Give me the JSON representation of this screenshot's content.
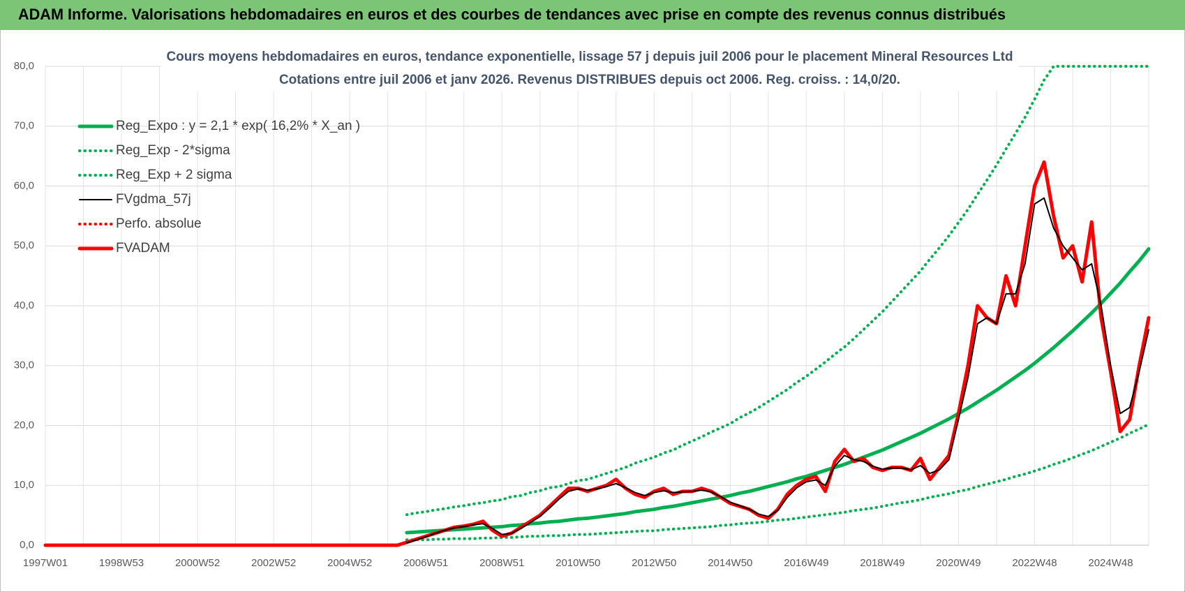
{
  "header": {
    "title": "ADAM Informe. Valorisations hebdomadaires en euros et des courbes de tendances avec prise en compte des revenus connus distribués"
  },
  "chart_data": {
    "type": "line",
    "title": "Cours moyens hebdomadaires en euros, tendance exponentielle, lissage 57 j depuis juil 2006 pour le placement Mineral Resources Ltd",
    "subtitle": "Cotations entre juil 2006 et janv 2026. Revenus DISTRIBUES depuis oct 2006. Reg. croiss. : 14,0/20.",
    "categories": [
      "1997W01",
      null,
      null,
      null,
      null,
      null,
      null,
      null,
      "1998W53",
      null,
      null,
      null,
      null,
      null,
      null,
      null,
      "2000W52",
      null,
      null,
      null,
      null,
      null,
      null,
      null,
      "2002W52",
      null,
      null,
      null,
      null,
      null,
      null,
      null,
      "2004W52",
      null,
      null,
      null,
      null,
      null,
      null,
      null,
      "2006W51",
      null,
      null,
      null,
      null,
      null,
      null,
      null,
      "2008W51",
      null,
      null,
      null,
      null,
      null,
      null,
      null,
      "2010W50",
      null,
      null,
      null,
      null,
      null,
      null,
      null,
      "2012W50",
      null,
      null,
      null,
      null,
      null,
      null,
      null,
      "2014W50",
      null,
      null,
      null,
      null,
      null,
      null,
      null,
      "2016W49",
      null,
      null,
      null,
      null,
      null,
      null,
      null,
      "2018W49",
      null,
      null,
      null,
      null,
      null,
      null,
      null,
      "2020W49",
      null,
      null,
      null,
      null,
      null,
      null,
      null,
      "2022W48",
      null,
      null,
      null,
      null,
      null,
      null,
      null,
      "2024W48",
      null,
      null,
      null,
      null
    ],
    "ylim": [
      0,
      80
    ],
    "yticks": [
      {
        "value": 0,
        "label": "0,0"
      },
      {
        "value": 10,
        "label": "10,0"
      },
      {
        "value": 20,
        "label": "20,0"
      },
      {
        "value": 30,
        "label": "30,0"
      },
      {
        "value": 40,
        "label": "40,0"
      },
      {
        "value": 50,
        "label": "50,0"
      },
      {
        "value": 60,
        "label": "60,0"
      },
      {
        "value": 70,
        "label": "70,0"
      },
      {
        "value": 80,
        "label": "80,0"
      }
    ],
    "grid": true,
    "legend": "upper left",
    "series": [
      {
        "name": "Reg_Expo : y = 2,1 * exp( 16,2% *  X_an )",
        "color": "#00b050",
        "style": "solid",
        "values": [
          null,
          null,
          null,
          null,
          null,
          null,
          null,
          null,
          null,
          null,
          null,
          null,
          null,
          null,
          null,
          null,
          null,
          null,
          null,
          null,
          null,
          null,
          null,
          null,
          null,
          null,
          null,
          null,
          null,
          null,
          null,
          null,
          null,
          null,
          null,
          null,
          null,
          null,
          2.1,
          2.2,
          2.3,
          2.4,
          2.5,
          2.6,
          2.7,
          2.8,
          2.9,
          3.0,
          3.1,
          3.3,
          3.4,
          3.6,
          3.7,
          3.9,
          4.0,
          4.2,
          4.4,
          4.5,
          4.7,
          4.9,
          5.1,
          5.3,
          5.6,
          5.8,
          6.0,
          6.3,
          6.5,
          6.8,
          7.1,
          7.4,
          7.7,
          8.0,
          8.3,
          8.7,
          9.0,
          9.4,
          9.8,
          10.2,
          10.6,
          11.1,
          11.5,
          12.0,
          12.5,
          13.0,
          13.5,
          14.1,
          14.7,
          15.3,
          15.9,
          16.6,
          17.3,
          18.0,
          18.7,
          19.5,
          20.3,
          21.1,
          22.0,
          22.9,
          23.9,
          24.9,
          25.9,
          27.0,
          28.1,
          29.2,
          30.4,
          31.7,
          33.0,
          34.4,
          35.8,
          37.3,
          38.8,
          40.4,
          42.1,
          43.8,
          45.7,
          47.5,
          49.5
        ]
      },
      {
        "name": "Reg_Exp - 2*sigma",
        "color": "#00b050",
        "style": "dotted",
        "values": [
          null,
          null,
          null,
          null,
          null,
          null,
          null,
          null,
          null,
          null,
          null,
          null,
          null,
          null,
          null,
          null,
          null,
          null,
          null,
          null,
          null,
          null,
          null,
          null,
          null,
          null,
          null,
          null,
          null,
          null,
          null,
          null,
          null,
          null,
          null,
          null,
          null,
          null,
          0.9,
          0.9,
          0.9,
          1.0,
          1.0,
          1.1,
          1.1,
          1.1,
          1.2,
          1.2,
          1.3,
          1.3,
          1.4,
          1.5,
          1.5,
          1.6,
          1.6,
          1.7,
          1.8,
          1.8,
          1.9,
          2.0,
          2.1,
          2.2,
          2.3,
          2.4,
          2.4,
          2.6,
          2.7,
          2.8,
          2.9,
          3.0,
          3.1,
          3.3,
          3.4,
          3.6,
          3.7,
          3.8,
          4.0,
          4.2,
          4.3,
          4.5,
          4.7,
          4.9,
          5.1,
          5.3,
          5.5,
          5.8,
          6.0,
          6.2,
          6.5,
          6.8,
          7.1,
          7.3,
          7.6,
          8.0,
          8.3,
          8.6,
          9.0,
          9.3,
          9.8,
          10.2,
          10.6,
          11.0,
          11.5,
          11.9,
          12.4,
          12.9,
          13.5,
          14.0,
          14.6,
          15.2,
          15.8,
          16.5,
          17.2,
          17.9,
          18.7,
          19.4,
          20.2
        ]
      },
      {
        "name": "Reg_Exp + 2 sigma",
        "color": "#00b050",
        "style": "dotted",
        "values": [
          null,
          null,
          null,
          null,
          null,
          null,
          null,
          null,
          null,
          null,
          null,
          null,
          null,
          null,
          null,
          null,
          null,
          null,
          null,
          null,
          null,
          null,
          null,
          null,
          null,
          null,
          null,
          null,
          null,
          null,
          null,
          null,
          null,
          null,
          null,
          null,
          null,
          null,
          5.1,
          5.4,
          5.6,
          5.9,
          6.1,
          6.4,
          6.6,
          6.9,
          7.1,
          7.4,
          7.6,
          8.1,
          8.3,
          8.8,
          9.1,
          9.6,
          9.8,
          10.3,
          10.8,
          11.0,
          11.5,
          12.0,
          12.5,
          13.0,
          13.7,
          14.2,
          14.7,
          15.4,
          15.9,
          16.7,
          17.4,
          18.1,
          18.9,
          19.6,
          20.3,
          21.3,
          22.1,
          23.0,
          24.0,
          25.0,
          26.0,
          27.2,
          28.2,
          29.4,
          30.6,
          31.9,
          33.1,
          34.5,
          36.0,
          37.5,
          39.0,
          40.7,
          42.4,
          44.1,
          45.8,
          47.8,
          49.7,
          51.7,
          53.9,
          56.1,
          58.6,
          61.0,
          63.5,
          66.2,
          68.8,
          71.5,
          74.5,
          77.7,
          80,
          80,
          80,
          80,
          80,
          80,
          80,
          80,
          80,
          80,
          80
        ]
      },
      {
        "name": "FVgdma_57j",
        "color": "#000000",
        "style": "solid",
        "values": [
          null,
          null,
          null,
          null,
          null,
          null,
          null,
          null,
          null,
          null,
          null,
          null,
          null,
          null,
          null,
          null,
          null,
          null,
          null,
          null,
          null,
          null,
          null,
          null,
          null,
          null,
          null,
          null,
          null,
          null,
          null,
          null,
          null,
          null,
          null,
          null,
          null,
          null,
          0.4,
          0.9,
          1.4,
          2.0,
          2.5,
          2.9,
          3.1,
          3.4,
          3.6,
          2.8,
          1.8,
          2.0,
          2.8,
          3.8,
          4.8,
          6.2,
          7.7,
          9.0,
          9.4,
          9.2,
          9.4,
          9.8,
          10.3,
          9.6,
          8.8,
          8.3,
          8.8,
          9.1,
          8.8,
          8.9,
          9.0,
          9.2,
          8.9,
          8.1,
          7.2,
          6.6,
          6.0,
          5.2,
          4.8,
          5.8,
          8.0,
          9.6,
          10.6,
          10.9,
          10.0,
          13.2,
          15.0,
          14.3,
          14.0,
          13.2,
          12.7,
          12.9,
          12.9,
          12.6,
          13.3,
          12.0,
          12.6,
          14.3,
          21,
          28,
          37,
          38,
          37,
          42,
          42,
          47,
          57,
          58,
          53,
          50,
          48,
          46,
          47,
          40,
          30,
          22,
          23,
          29,
          36
        ]
      },
      {
        "name": "Perfo. absolue",
        "color": "#ff0000",
        "style": "dotted",
        "values": [
          0,
          0,
          0,
          0,
          0,
          0,
          0,
          0,
          0,
          0,
          0,
          0,
          0,
          0,
          0,
          0,
          0,
          0,
          0,
          0,
          0,
          0,
          0,
          0,
          0,
          0,
          0,
          0,
          0,
          0,
          0,
          0,
          0,
          0,
          0,
          0,
          0,
          0,
          0.5,
          1.0,
          1.5,
          2.0,
          2.5,
          3.0,
          3.2,
          3.5,
          4.0,
          2.5,
          1.5,
          2.0,
          3.0,
          4.0,
          5.0,
          6.5,
          8.0,
          9.5,
          9.5,
          9.0,
          9.5,
          10.0,
          11.0,
          9.5,
          8.5,
          8.0,
          9.0,
          9.5,
          8.5,
          9.0,
          9.0,
          9.5,
          9.0,
          8.0,
          7.0,
          6.5,
          6.0,
          5.0,
          4.5,
          6.0,
          8.5,
          10.0,
          11.0,
          11.5,
          9.0,
          14.0,
          16.0,
          14.0,
          14.5,
          13.0,
          12.5,
          13.0,
          13.0,
          12.5,
          14.5,
          11.0,
          13.0,
          15.0,
          22,
          30,
          40,
          38,
          37,
          45,
          40,
          50,
          60,
          64,
          55,
          48,
          50,
          44,
          54,
          38,
          29,
          19,
          21,
          30,
          38
        ]
      },
      {
        "name": "FVADAM",
        "color": "#ff0000",
        "style": "solid",
        "values": [
          0,
          0,
          0,
          0,
          0,
          0,
          0,
          0,
          0,
          0,
          0,
          0,
          0,
          0,
          0,
          0,
          0,
          0,
          0,
          0,
          0,
          0,
          0,
          0,
          0,
          0,
          0,
          0,
          0,
          0,
          0,
          0,
          0,
          0,
          0,
          0,
          0,
          0,
          0.5,
          1.0,
          1.5,
          2.0,
          2.5,
          3.0,
          3.2,
          3.5,
          4.0,
          2.5,
          1.5,
          2.0,
          3.0,
          4.0,
          5.0,
          6.5,
          8.0,
          9.5,
          9.5,
          9.0,
          9.5,
          10.0,
          11.0,
          9.5,
          8.5,
          8.0,
          9.0,
          9.5,
          8.5,
          9.0,
          9.0,
          9.5,
          9.0,
          8.0,
          7.0,
          6.5,
          6.0,
          5.0,
          4.5,
          6.0,
          8.5,
          10.0,
          11.0,
          11.5,
          9.0,
          14.0,
          16.0,
          14.0,
          14.5,
          13.0,
          12.5,
          13.0,
          13.0,
          12.5,
          14.5,
          11.0,
          13.0,
          15.0,
          22,
          30,
          40,
          38,
          37,
          45,
          40,
          50,
          60,
          64,
          55,
          48,
          50,
          44,
          54,
          38,
          29,
          19,
          21,
          30,
          38
        ]
      }
    ]
  }
}
